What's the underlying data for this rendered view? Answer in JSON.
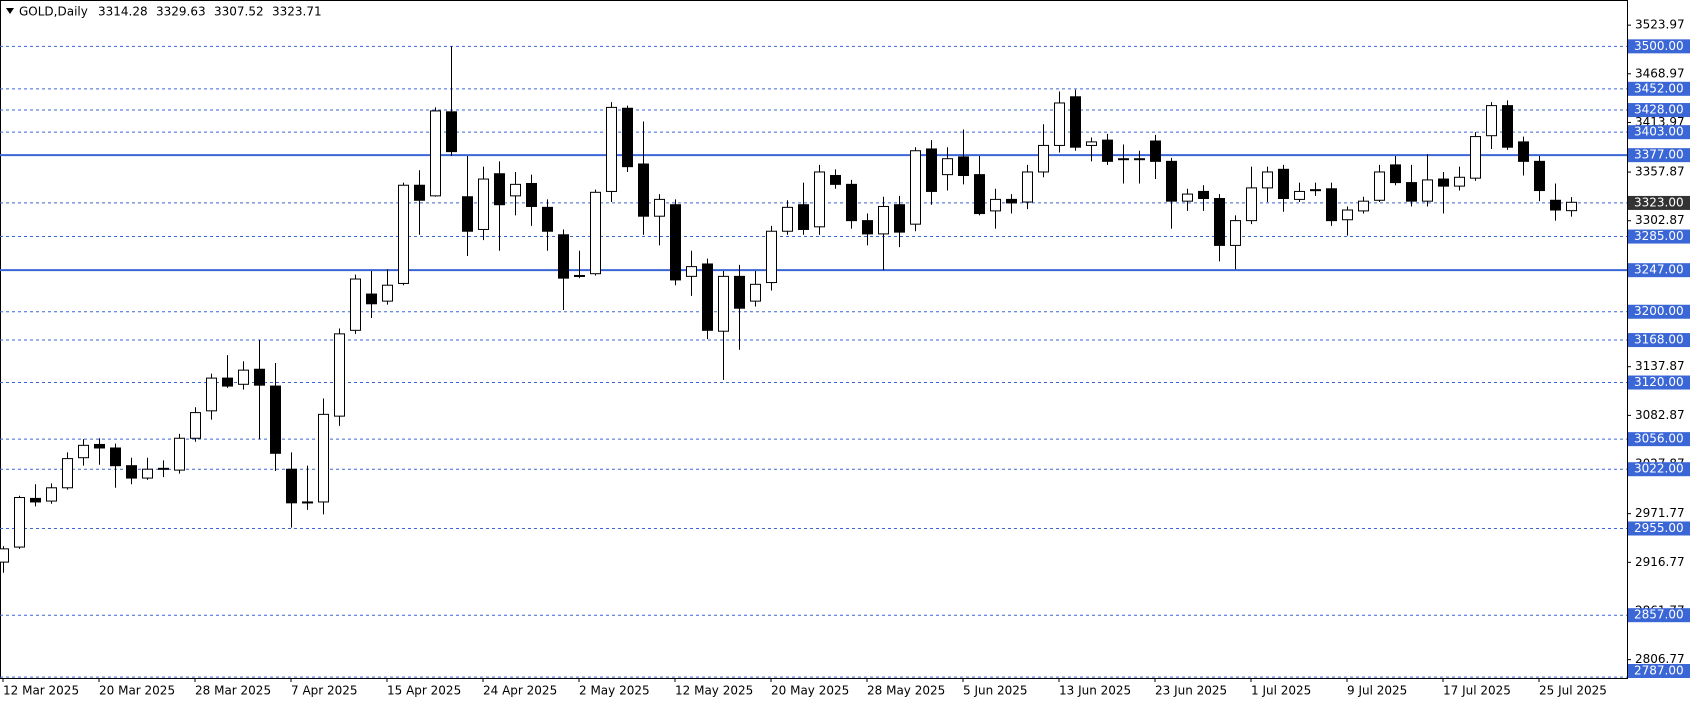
{
  "chart_data": {
    "type": "candlestick",
    "title": "GOLD,Daily",
    "categories": [
      "12 Mar 2025",
      null,
      null,
      null,
      null,
      null,
      "20 Mar 2025",
      null,
      null,
      null,
      null,
      null,
      "28 Mar 2025",
      null,
      null,
      null,
      null,
      null,
      "7 Apr 2025",
      null,
      null,
      null,
      null,
      null,
      "15 Apr 2025",
      null,
      null,
      null,
      null,
      null,
      "24 Apr 2025",
      null,
      null,
      null,
      null,
      null,
      "2 May 2025",
      null,
      null,
      null,
      null,
      null,
      "12 May 2025",
      null,
      null,
      null,
      null,
      null,
      "20 May 2025",
      null,
      null,
      null,
      null,
      null,
      "28 May 2025",
      null,
      null,
      null,
      null,
      null,
      "5 Jun 2025",
      null,
      null,
      null,
      null,
      null,
      "13 Jun 2025",
      null,
      null,
      null,
      null,
      null,
      "23 Jun 2025",
      null,
      null,
      null,
      null,
      null,
      "1 Jul 2025",
      null,
      null,
      null,
      null,
      null,
      "9 Jul 2025",
      null,
      null,
      null,
      null,
      null,
      "17 Jul 2025",
      null,
      null,
      null,
      null,
      null,
      "25 Jul 2025",
      null,
      null
    ],
    "open": [
      2917,
      2934,
      2989,
      2986,
      3001,
      3035,
      3050,
      3046,
      3026,
      3012,
      3022,
      3021,
      3057,
      3088,
      3125,
      3118,
      3135,
      3116,
      3022,
      2984,
      2985,
      3082,
      3179,
      3220,
      3212,
      3232,
      3343,
      3331,
      3426,
      3330,
      3293,
      3356,
      3331,
      3345,
      3318,
      3287,
      3240,
      3243,
      3336,
      3430,
      3367,
      3308,
      3321,
      3240,
      3254,
      3178,
      3240,
      3212,
      3233,
      3291,
      3321,
      3296,
      3354,
      3344,
      3303,
      3288,
      3321,
      3299,
      3384,
      3355,
      3375,
      3355,
      3314,
      3327,
      3324,
      3358,
      3388,
      3443,
      3388,
      3394,
      3373,
      3372,
      3393,
      3370,
      3325,
      3336,
      3328,
      3275,
      3303,
      3340,
      3361,
      3327,
      3337,
      3339,
      3304,
      3314,
      3326,
      3366,
      3346,
      3325,
      3350,
      3342,
      3351,
      3399,
      3433,
      3392,
      3370,
      3326,
      3314.28
    ],
    "high": [
      2935,
      2992,
      3005,
      3006,
      3041,
      3056,
      3057,
      3051,
      3035,
      3035,
      3032,
      3062,
      3092,
      3130,
      3151,
      3144,
      3168,
      3142,
      3041,
      3026,
      3102,
      3181,
      3242,
      3246,
      3248,
      3346,
      3360,
      3431,
      3500,
      3376,
      3364,
      3370,
      3358,
      3355,
      3327,
      3293,
      3269,
      3338,
      3437,
      3433,
      3415,
      3333,
      3327,
      3269,
      3260,
      3246,
      3253,
      3246,
      3297,
      3326,
      3346,
      3366,
      3361,
      3349,
      3311,
      3330,
      3331,
      3386,
      3394,
      3386,
      3406,
      3376,
      3339,
      3333,
      3366,
      3412,
      3449,
      3451,
      3397,
      3401,
      3389,
      3382,
      3400,
      3374,
      3339,
      3343,
      3333,
      3309,
      3364,
      3364,
      3366,
      3346,
      3346,
      3346,
      3319,
      3330,
      3366,
      3376,
      3366,
      3378,
      3358,
      3364,
      3403,
      3437,
      3439,
      3398,
      3376,
      3345,
      3329.63
    ],
    "low": [
      2905,
      2932,
      2980,
      2983,
      2999,
      3026,
      3027,
      3001,
      3005,
      3010,
      3013,
      3017,
      3053,
      3078,
      3114,
      3112,
      3056,
      3020,
      2956,
      2976,
      2971,
      3071,
      3175,
      3193,
      3208,
      3230,
      3287,
      3330,
      3376,
      3263,
      3281,
      3269,
      3309,
      3297,
      3269,
      3202,
      3238,
      3241,
      3324,
      3358,
      3287,
      3275,
      3230,
      3218,
      3169,
      3123,
      3157,
      3206,
      3224,
      3287,
      3287,
      3287,
      3339,
      3294,
      3275,
      3247,
      3273,
      3291,
      3321,
      3337,
      3344,
      3309,
      3294,
      3311,
      3316,
      3352,
      3380,
      3382,
      3370,
      3366,
      3345,
      3345,
      3350,
      3294,
      3314,
      3314,
      3257,
      3248,
      3299,
      3324,
      3313,
      3324,
      3331,
      3297,
      3286,
      3311,
      3324,
      3343,
      3319,
      3319,
      3311,
      3337,
      3348,
      3384,
      3383,
      3354,
      3325,
      3303,
      3307.52
    ],
    "close": [
      2932,
      2990,
      2985,
      3001,
      3034,
      3049,
      3046,
      3026,
      3012,
      3022,
      3023,
      3057,
      3086,
      3125,
      3116,
      3134,
      3117,
      3040,
      2984,
      2985,
      3084,
      3175,
      3237,
      3209,
      3230,
      3343,
      3326,
      3427,
      3381,
      3291,
      3350,
      3321,
      3344,
      3319,
      3291,
      3238,
      3241,
      3335,
      3431,
      3364,
      3308,
      3327,
      3236,
      3251,
      3179,
      3240,
      3204,
      3231,
      3291,
      3318,
      3293,
      3358,
      3344,
      3303,
      3288,
      3319,
      3290,
      3382,
      3336,
      3373,
      3354,
      3311,
      3327,
      3323,
      3358,
      3388,
      3436,
      3386,
      3392,
      3370,
      3372,
      3373,
      3370,
      3325,
      3333,
      3328,
      3275,
      3303,
      3340,
      3358,
      3328,
      3336,
      3338,
      3303,
      3315,
      3325,
      3358,
      3346,
      3325,
      3349,
      3342,
      3352,
      3398,
      3433,
      3386,
      3370,
      3337,
      3315,
      3323.71
    ],
    "up_color": "#ffffff",
    "down_color": "#000000",
    "ylim": [
      2786,
      3549
    ],
    "yticks": [
      3523.97,
      3468.97,
      3413.97,
      3357.87,
      3302.87,
      3137.87,
      3082.87,
      3027.87,
      2971.77,
      2916.77,
      2861.77,
      2806.77
    ],
    "levels": [
      {
        "value": 3500,
        "label": "3500.00",
        "style": "dashed",
        "color": "#3a66d6"
      },
      {
        "value": 3452,
        "label": "3452.00",
        "style": "dashed",
        "color": "#3a66d6"
      },
      {
        "value": 3428,
        "label": "3428.00",
        "style": "dashed",
        "color": "#3a66d6"
      },
      {
        "value": 3403,
        "label": "3403.00",
        "style": "dashed",
        "color": "#3a66d6"
      },
      {
        "value": 3377,
        "label": "3377.00",
        "style": "solid",
        "color": "#3a66d6"
      },
      {
        "value": 3323,
        "label": "3323.00",
        "style": "dashed",
        "color": "#3a66d6",
        "label_color": "#333333"
      },
      {
        "value": 3285,
        "label": "3285.00",
        "style": "dashed",
        "color": "#3a66d6"
      },
      {
        "value": 3247,
        "label": "3247.00",
        "style": "solid",
        "color": "#3a66d6"
      },
      {
        "value": 3200,
        "label": "3200.00",
        "style": "dashed",
        "color": "#3a66d6"
      },
      {
        "value": 3168,
        "label": "3168.00",
        "style": "dashed",
        "color": "#3a66d6"
      },
      {
        "value": 3120,
        "label": "3120.00",
        "style": "dashed",
        "color": "#3a66d6"
      },
      {
        "value": 3056,
        "label": "3056.00",
        "style": "dashed",
        "color": "#3a66d6"
      },
      {
        "value": 3022,
        "label": "3022.00",
        "style": "dashed",
        "color": "#3a66d6"
      },
      {
        "value": 2955,
        "label": "2955.00",
        "style": "dashed",
        "color": "#3a66d6"
      },
      {
        "value": 2857,
        "label": "2857.00",
        "style": "dashed",
        "color": "#3a66d6"
      },
      {
        "value": 2787,
        "label": "2787.00",
        "style": "dashed",
        "color": "#3a66d6"
      }
    ]
  }
}
